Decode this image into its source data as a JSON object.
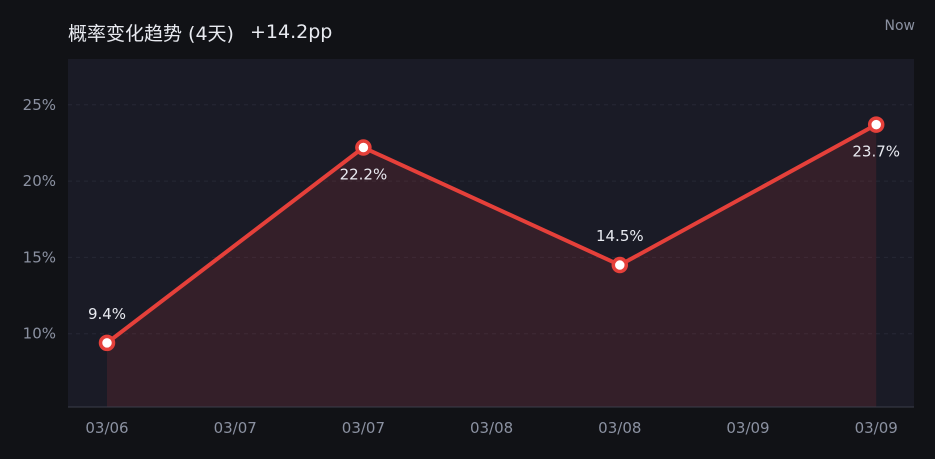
{
  "header": {
    "title": "概率变化趋势 (4天)",
    "delta": "+14.2pp",
    "now_label": "Now"
  },
  "colors": {
    "background": "#111216",
    "plot_background": "#1a1b26",
    "line": "#e5403a",
    "area": "#3a1f25",
    "text": "#e8eaf0",
    "muted": "#8b91a1",
    "grid": "#262835"
  },
  "chart_data": {
    "type": "line",
    "title": "概率变化趋势 (4天)",
    "xlabel": "",
    "ylabel": "",
    "x_ticks": [
      "03/06",
      "03/07",
      "03/07",
      "03/08",
      "03/08",
      "03/09",
      "03/09"
    ],
    "x": [
      "03/06",
      "03/07",
      "03/08",
      "03/09"
    ],
    "values": [
      9.4,
      22.2,
      14.5,
      23.7
    ],
    "point_tick_index": [
      0,
      2,
      4,
      6
    ],
    "labels": [
      "9.4%",
      "22.2%",
      "14.5%",
      "23.7%"
    ],
    "label_position": [
      "above",
      "below",
      "above",
      "below"
    ],
    "y_ticks": [
      10,
      15,
      20,
      25
    ],
    "y_tick_labels": [
      "10%",
      "15%",
      "20%",
      "25%"
    ],
    "ylim": [
      5.2,
      28
    ],
    "grid": true,
    "area_fill": true
  }
}
